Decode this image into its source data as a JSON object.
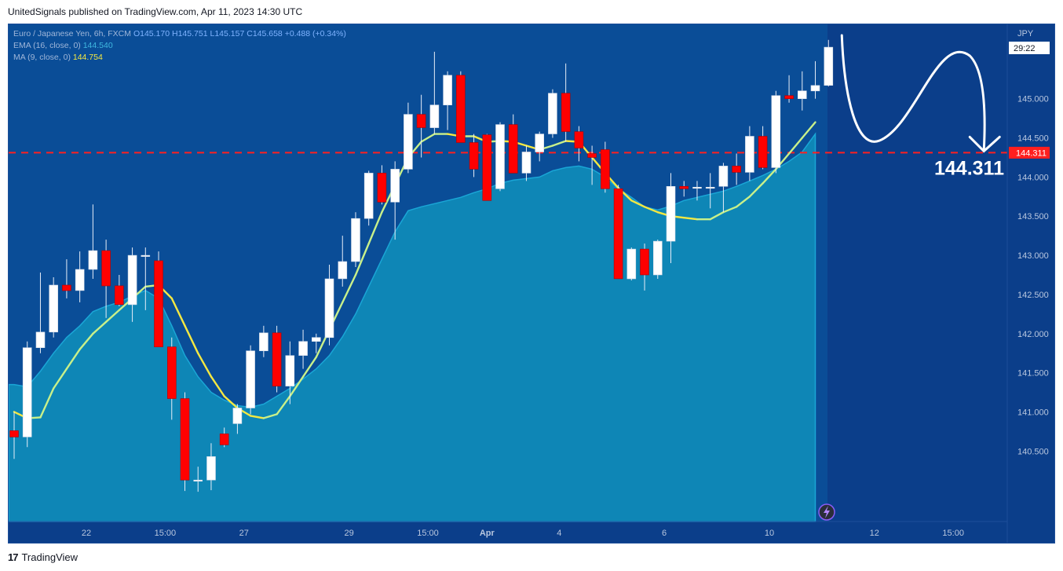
{
  "header": {
    "text": "UnitedSignals published on TradingView.com, Apr 11, 2023 14:30 UTC"
  },
  "legend": {
    "symbol": "Euro / Japanese Yen, 6h, FXCM",
    "ohlc": {
      "o_label": "O",
      "o": "145.170",
      "h_label": "H",
      "h": "145.751",
      "l_label": "L",
      "l": "145.157",
      "c_label": "C",
      "c": "145.658",
      "change": "+0.488 (+0.34%)"
    },
    "ema": {
      "label": "EMA (16, close, 0)",
      "value": "144.540"
    },
    "ma": {
      "label": "MA (9, close, 0)",
      "value": "144.754"
    }
  },
  "price_axis": {
    "currency": "JPY",
    "countdown": "29:22",
    "level_label": "144.311"
  },
  "annotation": {
    "level_text": "144.311"
  },
  "footer": {
    "brand": "TradingView",
    "logo": "17"
  },
  "colors": {
    "background": "#0b3e8a",
    "area": "#0e86b6",
    "bull": "#ffffff",
    "bear": "#ff0000",
    "ma": "#f4e842",
    "ema_line": "#7fe0a0",
    "level": "#ff1f1f"
  },
  "chart_data": {
    "type": "candlestick",
    "title": "Euro / Japanese Yen, 6h, FXCM",
    "ylabel": "JPY",
    "ylim": [
      139.6,
      145.95
    ],
    "yticks": [
      140.5,
      141.0,
      141.5,
      142.0,
      142.5,
      143.0,
      143.5,
      144.0,
      144.5,
      145.0
    ],
    "ytick_labels": [
      "140.500",
      "141.000",
      "141.500",
      "142.000",
      "142.500",
      "143.000",
      "143.500",
      "144.000",
      "144.500",
      "145.000"
    ],
    "xticks": [
      {
        "label": "22",
        "index": 5.5
      },
      {
        "label": "15:00",
        "index": 11.5
      },
      {
        "label": "27",
        "index": 17.5
      },
      {
        "label": "29",
        "index": 25.5
      },
      {
        "label": "15:00",
        "index": 31.5
      },
      {
        "label": "Apr",
        "index": 36.0
      },
      {
        "label": "4",
        "index": 41.5
      },
      {
        "label": "6",
        "index": 49.5
      },
      {
        "label": "10",
        "index": 57.5
      },
      {
        "label": "12",
        "index": 65.5
      },
      {
        "label": "15:00",
        "index": 71.5
      }
    ],
    "candles": [
      {
        "o": 140.76,
        "h": 141.0,
        "l": 140.4,
        "c": 140.68
      },
      {
        "o": 140.68,
        "h": 141.9,
        "l": 140.55,
        "c": 141.82
      },
      {
        "o": 141.82,
        "h": 142.78,
        "l": 141.75,
        "c": 142.02
      },
      {
        "o": 142.02,
        "h": 142.72,
        "l": 141.95,
        "c": 142.62
      },
      {
        "o": 142.62,
        "h": 142.95,
        "l": 142.45,
        "c": 142.55
      },
      {
        "o": 142.55,
        "h": 143.05,
        "l": 142.4,
        "c": 142.82
      },
      {
        "o": 142.82,
        "h": 143.65,
        "l": 142.7,
        "c": 143.06
      },
      {
        "o": 143.06,
        "h": 143.2,
        "l": 142.2,
        "c": 142.61
      },
      {
        "o": 142.61,
        "h": 142.75,
        "l": 142.35,
        "c": 142.37
      },
      {
        "o": 142.37,
        "h": 143.1,
        "l": 142.15,
        "c": 143.0
      },
      {
        "o": 143.0,
        "h": 143.1,
        "l": 142.3,
        "c": 143.0
      },
      {
        "o": 142.93,
        "h": 143.05,
        "l": 141.85,
        "c": 141.83
      },
      {
        "o": 141.83,
        "h": 141.95,
        "l": 140.9,
        "c": 141.17
      },
      {
        "o": 141.17,
        "h": 141.25,
        "l": 139.99,
        "c": 140.13
      },
      {
        "o": 140.13,
        "h": 140.3,
        "l": 139.98,
        "c": 140.13
      },
      {
        "o": 140.13,
        "h": 140.6,
        "l": 140.0,
        "c": 140.43
      },
      {
        "o": 140.72,
        "h": 140.8,
        "l": 140.55,
        "c": 140.58
      },
      {
        "o": 140.85,
        "h": 141.1,
        "l": 140.72,
        "c": 141.05
      },
      {
        "o": 141.05,
        "h": 141.85,
        "l": 140.97,
        "c": 141.78
      },
      {
        "o": 141.78,
        "h": 142.1,
        "l": 141.7,
        "c": 142.01
      },
      {
        "o": 142.01,
        "h": 142.1,
        "l": 141.25,
        "c": 141.33
      },
      {
        "o": 141.33,
        "h": 141.9,
        "l": 141.1,
        "c": 141.72
      },
      {
        "o": 141.72,
        "h": 142.05,
        "l": 141.55,
        "c": 141.9
      },
      {
        "o": 141.9,
        "h": 142.0,
        "l": 141.75,
        "c": 141.95
      },
      {
        "o": 141.95,
        "h": 142.88,
        "l": 141.85,
        "c": 142.7
      },
      {
        "o": 142.7,
        "h": 143.25,
        "l": 142.6,
        "c": 142.92
      },
      {
        "o": 142.92,
        "h": 143.55,
        "l": 142.85,
        "c": 143.47
      },
      {
        "o": 143.47,
        "h": 144.08,
        "l": 143.38,
        "c": 144.05
      },
      {
        "o": 144.05,
        "h": 144.15,
        "l": 143.65,
        "c": 143.68
      },
      {
        "o": 143.68,
        "h": 144.2,
        "l": 143.2,
        "c": 144.1
      },
      {
        "o": 144.1,
        "h": 144.95,
        "l": 144.05,
        "c": 144.8
      },
      {
        "o": 144.8,
        "h": 145.05,
        "l": 144.25,
        "c": 144.63
      },
      {
        "o": 144.63,
        "h": 145.6,
        "l": 144.55,
        "c": 144.92
      },
      {
        "o": 144.92,
        "h": 145.35,
        "l": 144.6,
        "c": 145.3
      },
      {
        "o": 145.3,
        "h": 145.35,
        "l": 144.5,
        "c": 144.44
      },
      {
        "o": 144.44,
        "h": 144.55,
        "l": 144.0,
        "c": 144.1
      },
      {
        "o": 144.54,
        "h": 144.55,
        "l": 143.7,
        "c": 143.7
      },
      {
        "o": 143.85,
        "h": 144.7,
        "l": 143.82,
        "c": 144.67
      },
      {
        "o": 144.67,
        "h": 144.8,
        "l": 144.05,
        "c": 144.05
      },
      {
        "o": 144.05,
        "h": 144.4,
        "l": 143.95,
        "c": 144.32
      },
      {
        "o": 144.32,
        "h": 144.58,
        "l": 144.2,
        "c": 144.55
      },
      {
        "o": 144.55,
        "h": 145.12,
        "l": 144.5,
        "c": 145.07
      },
      {
        "o": 145.07,
        "h": 145.45,
        "l": 144.45,
        "c": 144.58
      },
      {
        "o": 144.58,
        "h": 144.65,
        "l": 144.2,
        "c": 144.37
      },
      {
        "o": 144.3,
        "h": 144.4,
        "l": 143.9,
        "c": 144.25
      },
      {
        "o": 144.35,
        "h": 144.45,
        "l": 143.8,
        "c": 143.85
      },
      {
        "o": 143.85,
        "h": 143.9,
        "l": 142.75,
        "c": 142.7
      },
      {
        "o": 142.7,
        "h": 143.1,
        "l": 142.68,
        "c": 143.08
      },
      {
        "o": 143.08,
        "h": 143.15,
        "l": 142.55,
        "c": 142.75
      },
      {
        "o": 142.75,
        "h": 143.2,
        "l": 142.7,
        "c": 143.18
      },
      {
        "o": 143.18,
        "h": 144.05,
        "l": 142.9,
        "c": 143.88
      },
      {
        "o": 143.88,
        "h": 143.95,
        "l": 143.75,
        "c": 143.85
      },
      {
        "o": 143.87,
        "h": 143.95,
        "l": 143.7,
        "c": 143.87
      },
      {
        "o": 143.87,
        "h": 144.05,
        "l": 143.6,
        "c": 143.87
      },
      {
        "o": 143.88,
        "h": 144.18,
        "l": 143.55,
        "c": 144.14
      },
      {
        "o": 144.14,
        "h": 144.3,
        "l": 143.9,
        "c": 144.06
      },
      {
        "o": 144.06,
        "h": 144.65,
        "l": 143.95,
        "c": 144.52
      },
      {
        "o": 144.52,
        "h": 144.65,
        "l": 144.1,
        "c": 144.12
      },
      {
        "o": 144.12,
        "h": 145.1,
        "l": 144.05,
        "c": 145.04
      },
      {
        "o": 145.04,
        "h": 145.3,
        "l": 144.95,
        "c": 145.0
      },
      {
        "o": 145.0,
        "h": 145.35,
        "l": 144.85,
        "c": 145.1
      },
      {
        "o": 145.1,
        "h": 145.48,
        "l": 145.0,
        "c": 145.17
      },
      {
        "o": 145.17,
        "h": 145.751,
        "l": 145.157,
        "c": 145.658
      }
    ],
    "ma": [
      141.0,
      140.92,
      140.93,
      141.3,
      141.55,
      141.8,
      142.0,
      142.15,
      142.3,
      142.45,
      142.6,
      142.62,
      142.45,
      142.1,
      141.75,
      141.45,
      141.2,
      141.05,
      140.95,
      140.92,
      140.97,
      141.2,
      141.45,
      141.7,
      142.05,
      142.4,
      142.75,
      143.15,
      143.55,
      143.9,
      144.25,
      144.45,
      144.55,
      144.55,
      144.52,
      144.52,
      144.45,
      144.46,
      144.45,
      144.4,
      144.35,
      144.4,
      144.46,
      144.45,
      144.25,
      144.05,
      143.86,
      143.7,
      143.62,
      143.55,
      143.5,
      143.48,
      143.46,
      143.46,
      143.55,
      143.62,
      143.75,
      143.92,
      144.1,
      144.3,
      144.5,
      144.7
    ],
    "area": [
      141.35,
      141.32,
      141.52,
      141.75,
      141.95,
      142.1,
      142.28,
      142.35,
      142.4,
      142.48,
      142.55,
      142.45,
      142.1,
      141.72,
      141.45,
      141.25,
      141.15,
      141.08,
      141.06,
      141.1,
      141.2,
      141.3,
      141.42,
      141.55,
      141.72,
      141.96,
      142.25,
      142.6,
      142.95,
      143.3,
      143.57,
      143.62,
      143.66,
      143.7,
      143.74,
      143.8,
      143.85,
      143.92,
      143.96,
      143.98,
      144.0,
      144.08,
      144.12,
      144.14,
      144.1,
      144.0,
      143.85,
      143.74,
      143.62,
      143.58,
      143.63,
      143.7,
      143.74,
      143.78,
      143.82,
      143.88,
      143.95,
      144.02,
      144.1,
      144.2,
      144.32,
      144.55
    ],
    "level": 144.311
  }
}
